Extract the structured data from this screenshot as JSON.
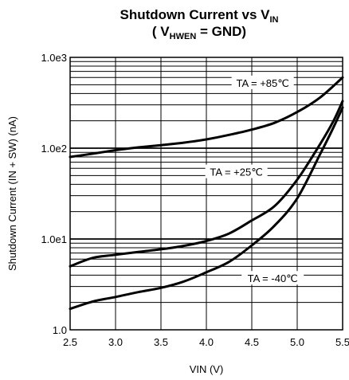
{
  "chart_data": {
    "type": "line",
    "title_line1": "Shutdown Current vs V",
    "title_line1_sub": "IN",
    "title_line2_pre": "( V",
    "title_line2_sub": "HWEN",
    "title_line2_post": " = GND)",
    "xlabel": "VIN (V)",
    "ylabel": "Shutdown Current (IN + SW) (nA)",
    "x_scale": "linear",
    "y_scale": "log",
    "xlim": [
      2.5,
      5.5
    ],
    "ylim": [
      1,
      1000
    ],
    "x_ticks": [
      2.5,
      3.0,
      3.5,
      4.0,
      4.5,
      5.0,
      5.5
    ],
    "x_tick_labels": [
      "2.5",
      "3.0",
      "3.5",
      "4.0",
      "4.5",
      "5.0",
      "5.5"
    ],
    "y_ticks": [
      1,
      10,
      100,
      1000
    ],
    "y_tick_labels": [
      "1.0",
      "1.0e1",
      "1.0e2",
      "1.0e3"
    ],
    "grid": true,
    "series": [
      {
        "name": "TA = +85℃",
        "x": [
          2.5,
          2.75,
          3.0,
          3.25,
          3.5,
          3.75,
          4.0,
          4.25,
          4.5,
          4.75,
          5.0,
          5.25,
          5.5
        ],
        "y": [
          80,
          87,
          95,
          102,
          108,
          115,
          125,
          140,
          160,
          190,
          250,
          360,
          600
        ]
      },
      {
        "name": "TA = +25℃",
        "x": [
          2.5,
          2.75,
          3.0,
          3.25,
          3.5,
          3.75,
          4.0,
          4.25,
          4.5,
          4.75,
          5.0,
          5.25,
          5.4,
          5.5
        ],
        "y": [
          5.0,
          6.2,
          6.7,
          7.2,
          7.7,
          8.4,
          9.5,
          11.5,
          16,
          23,
          45,
          110,
          200,
          330
        ]
      },
      {
        "name": "TA = -40℃",
        "x": [
          2.5,
          2.75,
          3.0,
          3.25,
          3.5,
          3.75,
          4.0,
          4.25,
          4.5,
          4.75,
          5.0,
          5.25,
          5.4,
          5.5
        ],
        "y": [
          1.7,
          2.05,
          2.3,
          2.6,
          2.9,
          3.4,
          4.3,
          5.6,
          8.5,
          14,
          28,
          85,
          170,
          280
        ]
      }
    ],
    "annotations": [
      {
        "text": "TA = +85℃",
        "x": 4.62,
        "y": 525
      },
      {
        "text": "TA = +25℃",
        "x": 4.33,
        "y": 55
      },
      {
        "text": "TA = -40℃",
        "x": 4.73,
        "y": 3.7
      }
    ]
  }
}
